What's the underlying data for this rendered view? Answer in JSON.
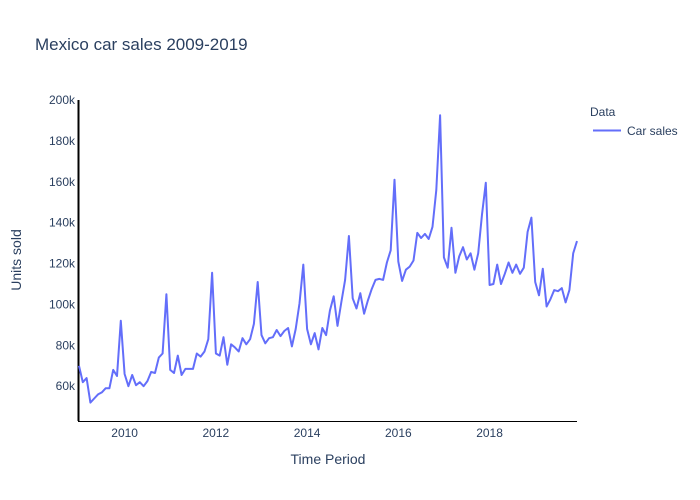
{
  "chart_data": {
    "type": "line",
    "title": "Mexico car sales 2009-2019",
    "xlabel": "Time Period",
    "ylabel": "Units sold",
    "xlim": [
      "2009-01",
      "2019-12"
    ],
    "ylim": [
      43000,
      200000
    ],
    "x_ticks": [
      {
        "value": "2010-01",
        "label": "2010"
      },
      {
        "value": "2012-01",
        "label": "2012"
      },
      {
        "value": "2014-01",
        "label": "2014"
      },
      {
        "value": "2016-01",
        "label": "2016"
      },
      {
        "value": "2018-01",
        "label": "2018"
      }
    ],
    "y_ticks": [
      {
        "value": 60000,
        "label": "60k"
      },
      {
        "value": 80000,
        "label": "80k"
      },
      {
        "value": 100000,
        "label": "100k"
      },
      {
        "value": 120000,
        "label": "120k"
      },
      {
        "value": 140000,
        "label": "140k"
      },
      {
        "value": 160000,
        "label": "160k"
      },
      {
        "value": 180000,
        "label": "180k"
      },
      {
        "value": 200000,
        "label": "200k"
      }
    ],
    "grid": false,
    "legend": {
      "title": "Data",
      "position": "top-right"
    },
    "series": [
      {
        "name": "Car sales",
        "color": "#636efa",
        "x": [
          "2009-01",
          "2009-02",
          "2009-03",
          "2009-04",
          "2009-05",
          "2009-06",
          "2009-07",
          "2009-08",
          "2009-09",
          "2009-10",
          "2009-11",
          "2009-12",
          "2010-01",
          "2010-02",
          "2010-03",
          "2010-04",
          "2010-05",
          "2010-06",
          "2010-07",
          "2010-08",
          "2010-09",
          "2010-10",
          "2010-11",
          "2010-12",
          "2011-01",
          "2011-02",
          "2011-03",
          "2011-04",
          "2011-05",
          "2011-06",
          "2011-07",
          "2011-08",
          "2011-09",
          "2011-10",
          "2011-11",
          "2011-12",
          "2012-01",
          "2012-02",
          "2012-03",
          "2012-04",
          "2012-05",
          "2012-06",
          "2012-07",
          "2012-08",
          "2012-09",
          "2012-10",
          "2012-11",
          "2012-12",
          "2013-01",
          "2013-02",
          "2013-03",
          "2013-04",
          "2013-05",
          "2013-06",
          "2013-07",
          "2013-08",
          "2013-09",
          "2013-10",
          "2013-11",
          "2013-12",
          "2014-01",
          "2014-02",
          "2014-03",
          "2014-04",
          "2014-05",
          "2014-06",
          "2014-07",
          "2014-08",
          "2014-09",
          "2014-10",
          "2014-11",
          "2014-12",
          "2015-01",
          "2015-02",
          "2015-03",
          "2015-04",
          "2015-05",
          "2015-06",
          "2015-07",
          "2015-08",
          "2015-09",
          "2015-10",
          "2015-11",
          "2015-12",
          "2016-01",
          "2016-02",
          "2016-03",
          "2016-04",
          "2016-05",
          "2016-06",
          "2016-07",
          "2016-08",
          "2016-09",
          "2016-10",
          "2016-11",
          "2016-12",
          "2017-01",
          "2017-02",
          "2017-03",
          "2017-04",
          "2017-05",
          "2017-06",
          "2017-07",
          "2017-08",
          "2017-09",
          "2017-10",
          "2017-11",
          "2017-12",
          "2018-01",
          "2018-02",
          "2018-03",
          "2018-04",
          "2018-05",
          "2018-06",
          "2018-07",
          "2018-08",
          "2018-09",
          "2018-10",
          "2018-11",
          "2018-12",
          "2019-01",
          "2019-02",
          "2019-03",
          "2019-04",
          "2019-05",
          "2019-06",
          "2019-07",
          "2019-08",
          "2019-09",
          "2019-10",
          "2019-11",
          "2019-12"
        ],
        "values": [
          70000,
          62000,
          64000,
          52000,
          54000,
          56000,
          57000,
          59000,
          59000,
          68000,
          65000,
          92000,
          66000,
          60000,
          65500,
          60500,
          62000,
          60000,
          62500,
          67000,
          66500,
          74000,
          76000,
          105000,
          68000,
          66500,
          75000,
          65500,
          68500,
          68500,
          68500,
          76000,
          74500,
          77000,
          83000,
          115500,
          76000,
          75000,
          84000,
          70500,
          80500,
          79000,
          77000,
          83500,
          80500,
          83000,
          90500,
          111000,
          85000,
          81000,
          83500,
          84000,
          87500,
          84500,
          87000,
          88500,
          79500,
          88000,
          100500,
          119500,
          88000,
          80500,
          86000,
          78000,
          88500,
          85000,
          97000,
          104000,
          89500,
          101000,
          112000,
          133500,
          103000,
          98000,
          105500,
          95500,
          102000,
          107500,
          112000,
          112500,
          112000,
          120500,
          126500,
          161000,
          121000,
          111500,
          117000,
          118500,
          121500,
          135000,
          132500,
          134500,
          132000,
          138000,
          156000,
          192500,
          123000,
          118000,
          137500,
          115500,
          123500,
          128000,
          122000,
          125000,
          117000,
          125000,
          144000,
          159500,
          109500,
          110000,
          119500,
          110000,
          115000,
          120500,
          115500,
          119500,
          115000,
          118000,
          135500,
          142500,
          111000,
          104500,
          117500,
          99000,
          102500,
          107000,
          106500,
          108000,
          101000,
          107000,
          125000,
          131000
        ]
      }
    ]
  }
}
